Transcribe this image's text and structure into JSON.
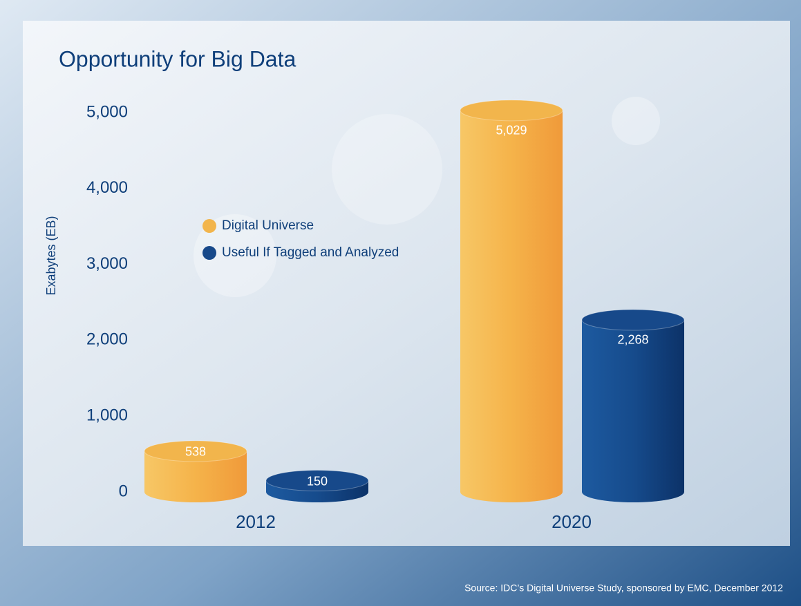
{
  "chart_data": {
    "type": "bar",
    "title": "Opportunity for Big Data",
    "y_label": "Exabytes (EB)",
    "categories": [
      "2012",
      "2020"
    ],
    "series": [
      {
        "name": "Digital Universe",
        "color": "#f2b54c",
        "values": [
          538,
          5029
        ],
        "value_labels": [
          "538",
          "5,029"
        ]
      },
      {
        "name": "Useful If Tagged and Analyzed",
        "color": "#17498a",
        "values": [
          150,
          2268
        ],
        "value_labels": [
          "150",
          "2,268"
        ]
      }
    ],
    "ylim": [
      0,
      5000
    ],
    "yticks": [
      0,
      {
        "value": 1000,
        "label": "1,000"
      },
      {
        "value": 2000,
        "label": "2,000"
      },
      {
        "value": 3000,
        "label": "3,000"
      },
      {
        "value": 4000,
        "label": "4,000"
      },
      {
        "value": 5000,
        "label": "5,000"
      }
    ],
    "grid": false,
    "source": "Source: IDC’s Digital Universe Study, sponsored by EMC, December 2012"
  }
}
